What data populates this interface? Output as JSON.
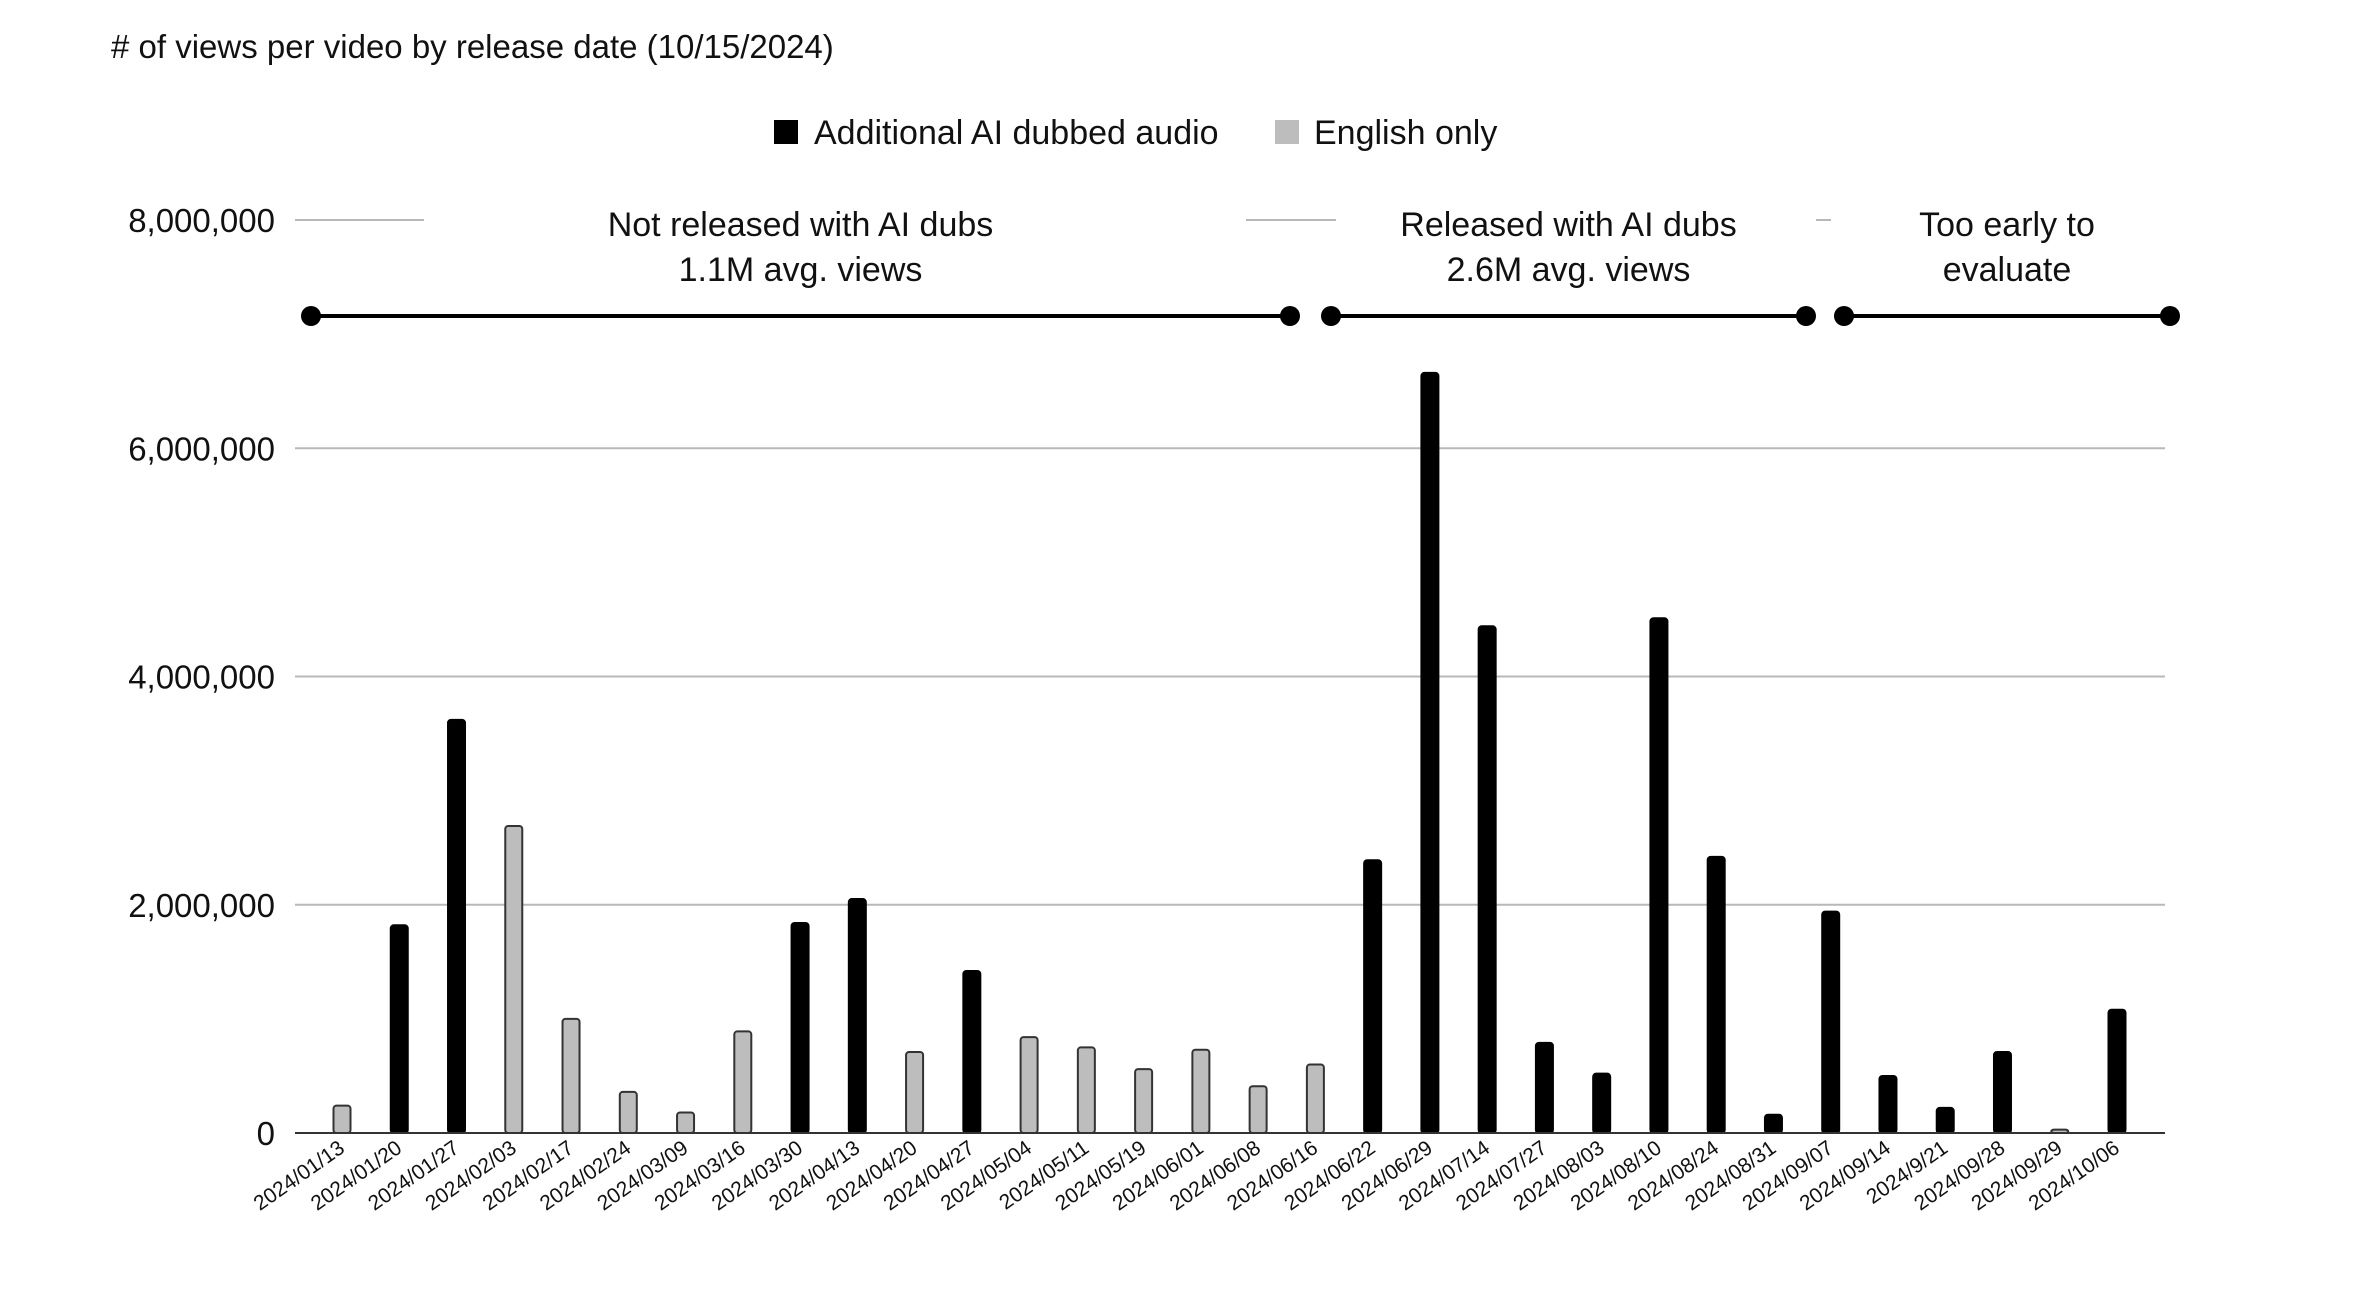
{
  "chart_data": {
    "type": "bar",
    "title": "# of views per video by release date  (10/15/2024)",
    "xlabel": "",
    "ylabel": "",
    "ylim": [
      0,
      8000000
    ],
    "yticks": [
      0,
      2000000,
      4000000,
      6000000,
      8000000
    ],
    "ytick_labels": [
      "0",
      "2,000,000",
      "4,000,000",
      "6,000,000",
      "8,000,000"
    ],
    "grid": true,
    "legend_position": "top-center",
    "categories": [
      "2024/01/13",
      "2024/01/20",
      "2024/01/27",
      "2024/02/03",
      "2024/02/17",
      "2024/02/24",
      "2024/03/09",
      "2024/03/16",
      "2024/03/30",
      "2024/04/13",
      "2024/04/20",
      "2024/04/27",
      "2024/05/04",
      "2024/05/11",
      "2024/05/19",
      "2024/06/01",
      "2024/06/08",
      "2024/06/16",
      "2024/06/22",
      "2024/06/29",
      "2024/07/14",
      "2024/07/27",
      "2024/08/03",
      "2024/08/10",
      "2024/08/24",
      "2024/08/31",
      "2024/09/07",
      "2024/09/14",
      "2024/9/21",
      "2024/09/28",
      "2024/09/29",
      "2024/10/06"
    ],
    "series": [
      {
        "name": "Additional AI dubbed audio",
        "color": "#000000",
        "values": [
          null,
          1820000,
          3620000,
          null,
          null,
          null,
          null,
          null,
          1840000,
          2050000,
          null,
          1420000,
          null,
          null,
          null,
          null,
          null,
          null,
          2390000,
          6660000,
          4440000,
          790000,
          520000,
          4510000,
          2420000,
          160000,
          1940000,
          500000,
          220000,
          710000,
          null,
          1080000
        ]
      },
      {
        "name": "English only",
        "color": "#bdbdbd",
        "values": [
          240000,
          null,
          null,
          2690000,
          1000000,
          360000,
          180000,
          890000,
          null,
          null,
          710000,
          null,
          840000,
          750000,
          560000,
          730000,
          410000,
          600000,
          null,
          null,
          null,
          null,
          null,
          null,
          null,
          null,
          null,
          null,
          null,
          null,
          30000,
          null
        ]
      }
    ],
    "annotations": [
      {
        "line1": "Not released with AI dubs",
        "line2": "1.1M avg. views",
        "from": "2024/01/13",
        "to": "2024/06/16"
      },
      {
        "line1": "Released with AI dubs",
        "line2": "2.6M avg. views",
        "from": "2024/06/22",
        "to": "2024/08/31"
      },
      {
        "line1": "Too early to",
        "line2": "evaluate",
        "from": "2024/09/07",
        "to": "2024/10/06"
      }
    ]
  }
}
